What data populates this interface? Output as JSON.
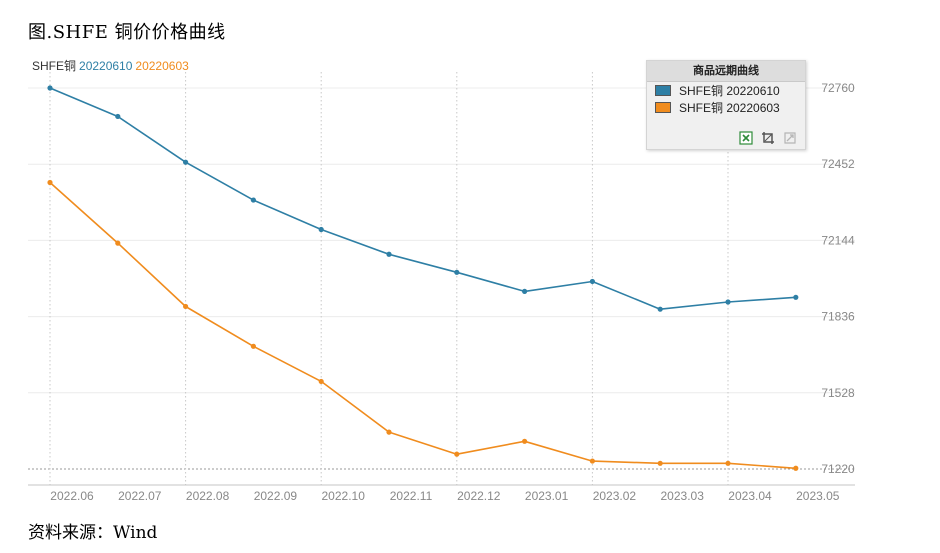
{
  "figure": {
    "title": "图.SHFE 铜价价格曲线",
    "source": "资料来源：Wind"
  },
  "series_header": {
    "prefix": "SHFE铜",
    "series_a": "20220610",
    "series_b": "20220603"
  },
  "legend": {
    "title": "商品远期曲线",
    "items": [
      {
        "label": "SHFE铜 20220610",
        "color": "#2e7fa5"
      },
      {
        "label": "SHFE铜 20220603",
        "color": "#f08c1e"
      }
    ],
    "tools": [
      "excel-export-icon",
      "crop-icon",
      "disabled-tool-icon"
    ]
  },
  "colors": {
    "series_a": "#2e7fa5",
    "series_b": "#f08c1e",
    "grid": "#c8c8c8",
    "axis_text": "#888888"
  },
  "chart_data": {
    "type": "line",
    "title": "",
    "xlabel": "",
    "ylabel": "",
    "x": [
      "2022.06",
      "2022.07",
      "2022.08",
      "2022.09",
      "2022.10",
      "2022.11",
      "2022.12",
      "2023.01",
      "2023.02",
      "2023.03",
      "2023.04",
      "2023.05"
    ],
    "y_ticks": [
      71220,
      71528,
      71836,
      72144,
      72452,
      72760
    ],
    "ylim": [
      71220,
      72760
    ],
    "y_axis_side": "right",
    "grid": true,
    "legend_position": "top-right",
    "series": [
      {
        "name": "SHFE铜 20220610",
        "values": [
          72760,
          72645,
          72460,
          72307,
          72188,
          72088,
          72015,
          71938,
          71978,
          71866,
          71895,
          71914
        ]
      },
      {
        "name": "SHFE铜 20220603",
        "values": [
          72378,
          72133,
          71877,
          71716,
          71574,
          71369,
          71280,
          71332,
          71252,
          71243,
          71243,
          71223
        ]
      }
    ]
  }
}
